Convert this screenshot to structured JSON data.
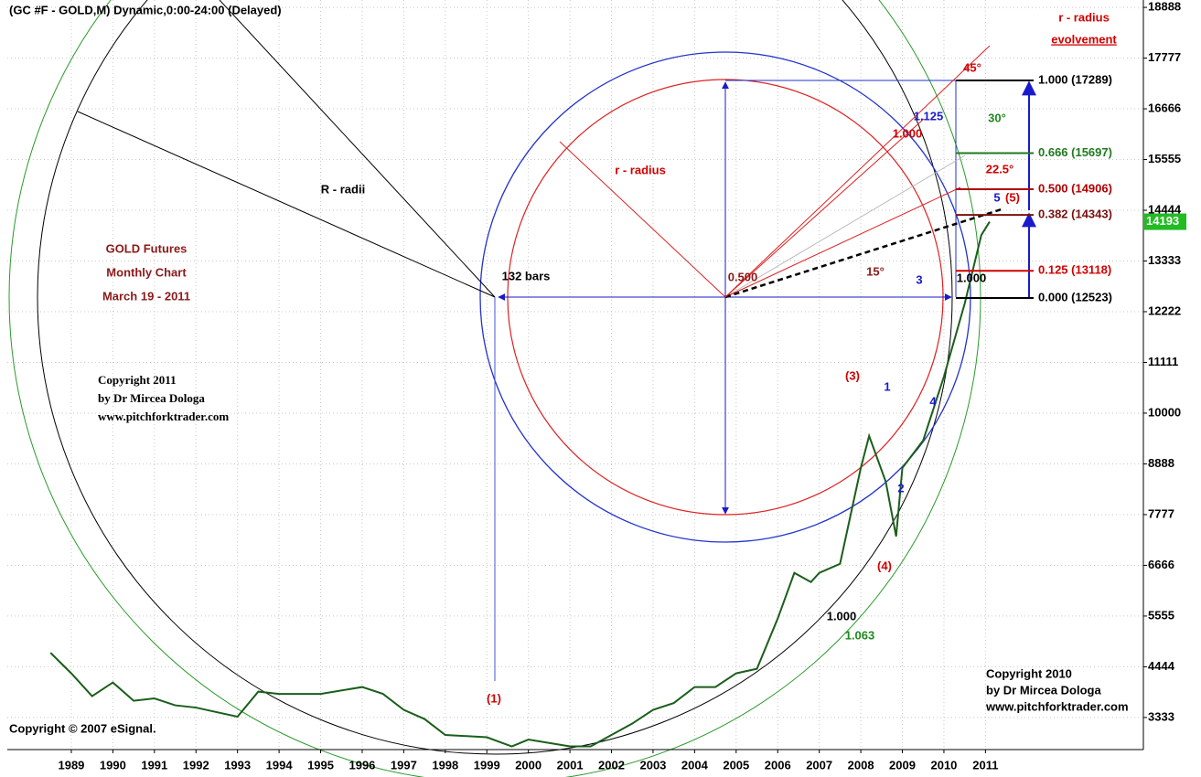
{
  "chart_data": {
    "type": "line",
    "title": "(GC #F - GOLD,M) Dynamic,0:00-24:00 (Delayed)",
    "xlim": [
      1987.46,
      2014.8
    ],
    "xticks": [
      1989,
      1990,
      1991,
      1992,
      1993,
      1994,
      1995,
      1996,
      1997,
      1998,
      1999,
      2000,
      2001,
      2002,
      2003,
      2004,
      2005,
      2006,
      2007,
      2008,
      2009,
      2010,
      2011
    ],
    "ylim": [
      2630,
      19050
    ],
    "yticks": [
      3333,
      4444,
      5555,
      6666,
      7777,
      8888,
      10000,
      11111,
      12222,
      13333,
      14444,
      15555,
      16666,
      17777,
      18888
    ],
    "grid": true,
    "series": [
      {
        "color": "#1a5e1a",
        "x": [
          1988.5,
          1989,
          1989.5,
          1990,
          1990.5,
          1991,
          1991.5,
          1992,
          1992.5,
          1993,
          1993.5,
          1994,
          1995,
          1996,
          1996.5,
          1997,
          1997.5,
          1998,
          1999,
          1999.6,
          2000,
          2001,
          2001.5,
          2002,
          2002.5,
          2003,
          2003.5,
          2004,
          2004.5,
          2005,
          2005.5,
          2006,
          2006.4,
          2006.8,
          2007,
          2007.5,
          2008,
          2008.2,
          2008.6,
          2008.85,
          2009,
          2009.5,
          2010,
          2010.5,
          2010.9,
          2011.1
        ],
        "values": [
          4750,
          4300,
          3800,
          4100,
          3700,
          3750,
          3600,
          3550,
          3450,
          3350,
          3900,
          3850,
          3850,
          4000,
          3850,
          3500,
          3300,
          2950,
          2900,
          2700,
          2850,
          2700,
          2700,
          2950,
          3200,
          3500,
          3650,
          4000,
          4000,
          4300,
          4400,
          5500,
          6500,
          6300,
          6500,
          6700,
          8800,
          9500,
          8500,
          7300,
          8800,
          9400,
          10800,
          12400,
          13900,
          14193
        ]
      }
    ],
    "last_price": 14193,
    "levels": [
      {
        "label": "1.000 (17289)",
        "value": 17289,
        "color": "#000000"
      },
      {
        "label": "0.666 (15697)",
        "value": 15697,
        "color": "#1f7a1f"
      },
      {
        "label": "0.500 (14906)",
        "value": 14906,
        "color": "#b00000"
      },
      {
        "label": "0.382 (14343)",
        "value": 14343,
        "color": "#7a1010"
      },
      {
        "label": "0.125 (13118)",
        "value": 13118,
        "color": "#d00000"
      },
      {
        "label": "0.000 (12523)",
        "value": 12523,
        "color": "#000000"
      }
    ],
    "annotations": [
      {
        "text": "R - radii",
        "color": "#000000"
      },
      {
        "text": "r - radius",
        "color": "#d00000"
      },
      {
        "text": "r - radius",
        "color": "#d00000"
      },
      {
        "text": "evolvement",
        "color": "#d00000"
      },
      {
        "text": "45°",
        "color": "#d00000"
      },
      {
        "text": "30°",
        "color": "#1f8a1f"
      },
      {
        "text": "22.5°",
        "color": "#d00000"
      },
      {
        "text": "15°",
        "color": "#8b1a1a"
      },
      {
        "text": "1.125",
        "color": "#1a1acc"
      },
      {
        "text": "1.000",
        "color": "#d00000"
      },
      {
        "text": "0.500",
        "color": "#8b1a1a"
      },
      {
        "text": "132 bars",
        "color": "#000000"
      },
      {
        "text": "1.000",
        "color": "#000000"
      },
      {
        "text": "GOLD Futures",
        "color": "#8b1a1a"
      },
      {
        "text": "Monthly Chart",
        "color": "#8b1a1a"
      },
      {
        "text": "March 19 - 2011",
        "color": "#8b1a1a"
      },
      {
        "text": "Copyright 2011",
        "color": "#000000"
      },
      {
        "text": "by Dr Mircea Dologa",
        "color": "#000000"
      },
      {
        "text": "www.pitchforktrader.com",
        "color": "#000000"
      },
      {
        "text": "Copyright 2010",
        "color": "#000000"
      },
      {
        "text": "by Dr Mircea Dologa",
        "color": "#000000"
      },
      {
        "text": "www.pitchforktrader.com",
        "color": "#000000"
      },
      {
        "text": "(1)",
        "color": "#d00000"
      },
      {
        "text": "(3)",
        "color": "#d00000"
      },
      {
        "text": "(4)",
        "color": "#d00000"
      },
      {
        "text": "(5)",
        "color": "#d00000"
      },
      {
        "text": "1",
        "color": "#1a1acc"
      },
      {
        "text": "2",
        "color": "#1a1acc"
      },
      {
        "text": "3",
        "color": "#1a1acc"
      },
      {
        "text": "4",
        "color": "#1a1acc"
      },
      {
        "text": "5",
        "color": "#1a1acc"
      },
      {
        "text": "1.000",
        "color": "#000000"
      },
      {
        "text": "1.063",
        "color": "#1f8a1f"
      },
      {
        "text": "Copyright © 2007 eSignal.",
        "color": "#000000"
      }
    ]
  }
}
